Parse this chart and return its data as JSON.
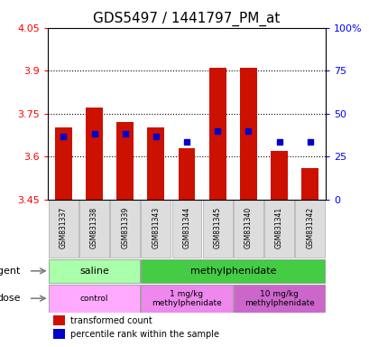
{
  "title": "GDS5497 / 1441797_PM_at",
  "samples": [
    "GSM831337",
    "GSM831338",
    "GSM831339",
    "GSM831343",
    "GSM831344",
    "GSM831345",
    "GSM831340",
    "GSM831341",
    "GSM831342"
  ],
  "bar_tops": [
    3.7,
    3.77,
    3.72,
    3.7,
    3.63,
    3.91,
    3.91,
    3.62,
    3.56
  ],
  "bar_bottom": 3.45,
  "blue_dots": [
    3.67,
    3.68,
    3.68,
    3.67,
    3.65,
    3.69,
    3.69,
    3.65,
    3.65
  ],
  "ylim_left": [
    3.45,
    4.05
  ],
  "ylim_right": [
    0,
    100
  ],
  "yticks_left": [
    3.45,
    3.6,
    3.75,
    3.9,
    4.05
  ],
  "ytick_labels_left": [
    "3.45",
    "3.6",
    "3.75",
    "3.9",
    "4.05"
  ],
  "yticks_right": [
    0,
    25,
    50,
    75,
    100
  ],
  "ytick_labels_right": [
    "0",
    "25",
    "50",
    "75",
    "100%"
  ],
  "hlines": [
    3.6,
    3.75,
    3.9
  ],
  "bar_color": "#cc1100",
  "dot_color": "#0000cc",
  "agent_groups": [
    {
      "label": "saline",
      "start": 0,
      "end": 3,
      "color": "#aaffaa"
    },
    {
      "label": "methylphenidate",
      "start": 3,
      "end": 9,
      "color": "#44cc44"
    }
  ],
  "dose_groups": [
    {
      "label": "control",
      "start": 0,
      "end": 3,
      "color": "#ffaaff"
    },
    {
      "label": "1 mg/kg\nmethylphenidate",
      "start": 3,
      "end": 6,
      "color": "#ee88ee"
    },
    {
      "label": "10 mg/kg\nmethylphenidate",
      "start": 6,
      "end": 9,
      "color": "#cc66cc"
    }
  ],
  "legend_red": "transformed count",
  "legend_blue": "percentile rank within the sample",
  "agent_label": "agent",
  "dose_label": "dose",
  "sample_bg": "#dddddd",
  "title_fontsize": 11,
  "tick_fontsize": 8,
  "bar_width": 0.55
}
